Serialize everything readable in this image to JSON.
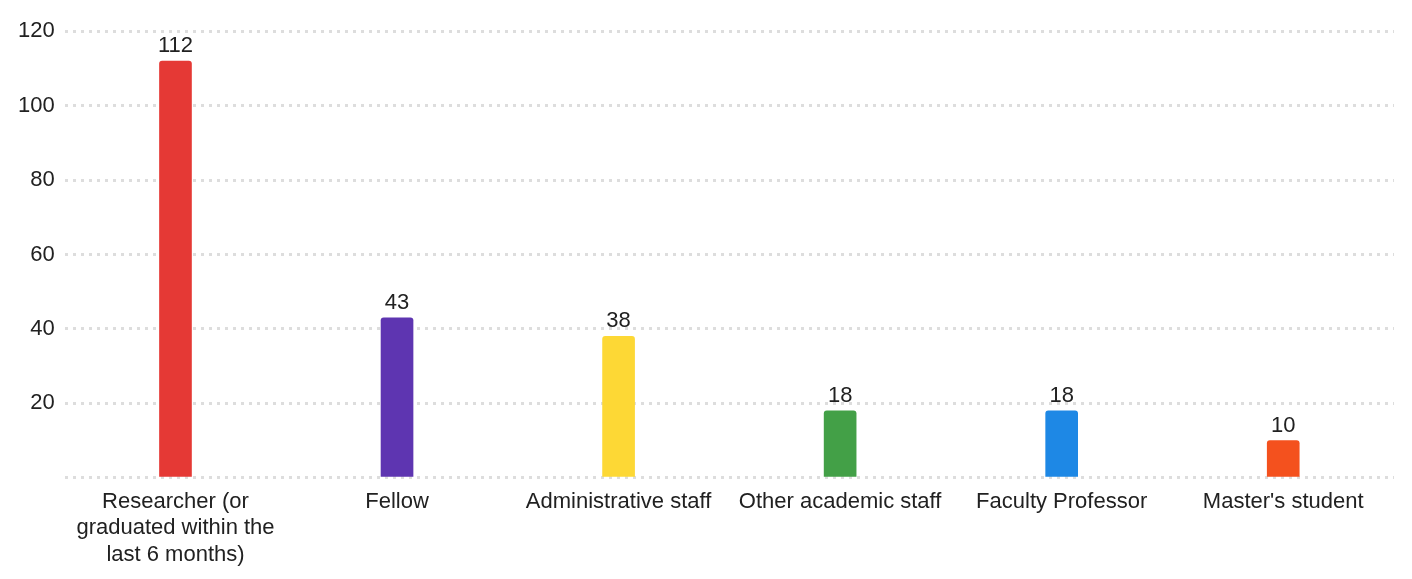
{
  "chart_data": {
    "type": "bar",
    "categories": [
      "Researcher (or graduated within the last 6 months)",
      "Fellow",
      "Administrative staff",
      "Other academic staff",
      "Faculty Professor",
      "Master's student"
    ],
    "values": [
      112,
      43,
      38,
      18,
      18,
      10
    ],
    "colors": [
      "#e53935",
      "#5e35b1",
      "#fdd835",
      "#43a047",
      "#1e88e5",
      "#f4511e"
    ],
    "ylim": [
      0,
      120
    ],
    "yticks": [
      {
        "value": 0,
        "label": null
      },
      20,
      40,
      60,
      80,
      100,
      120
    ],
    "grid": "y",
    "legend": false,
    "data_labels": true
  }
}
